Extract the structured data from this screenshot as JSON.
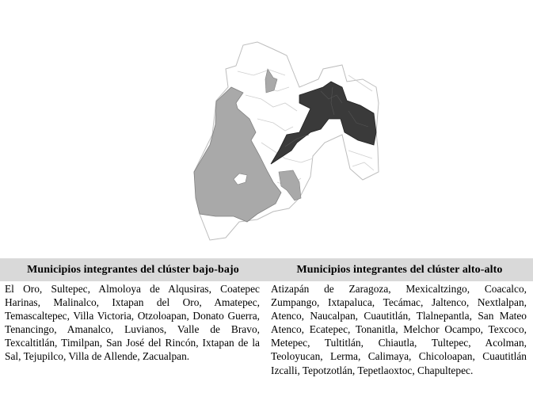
{
  "map": {
    "legend_colors": {
      "bajo_bajo": "#a9a9a9",
      "alto_alto": "#3a3a3a",
      "no_significativo": "#ffffff",
      "border": "#bdbdbd"
    }
  },
  "table": {
    "columns": [
      {
        "header": "Municipios integrantes del clúster bajo-bajo",
        "text": "El Oro, Sultepec, Almoloya de Alqusiras, Coatepec Harinas, Malinalco, Ixtapan del Oro, Amatepec, Temascaltepec, Villa Victoria, Otzoloapan, Donato Guerra, Tenancingo, Amanalco, Luvianos, Valle de Bravo, Texcaltitlán, Timilpan, San José del Rincón, Ixtapan de la Sal, Tejupilco, Villa de Allende, Zacualpan."
      },
      {
        "header": "Municipios integrantes del clúster alto-alto",
        "text": "Atizapán de Zaragoza, Mexicaltzingo, Coacalco, Zumpango, Ixtapaluca, Tecámac, Jaltenco, Nextlalpan, Atenco, Naucalpan, Cuautitlán, Tlalnepantla, San Mateo Atenco, Ecatepec, Tonanitla, Melchor Ocampo, Texcoco, Metepec, Tultitlán, Chiautla, Tultepec, Acolman, Teoloyucan, Lerma, Calimaya, Chicoloapan, Cuautitlán Izcalli, Tepotzotlán, Tepetlaoxtoc, Chapultepec."
      }
    ]
  }
}
